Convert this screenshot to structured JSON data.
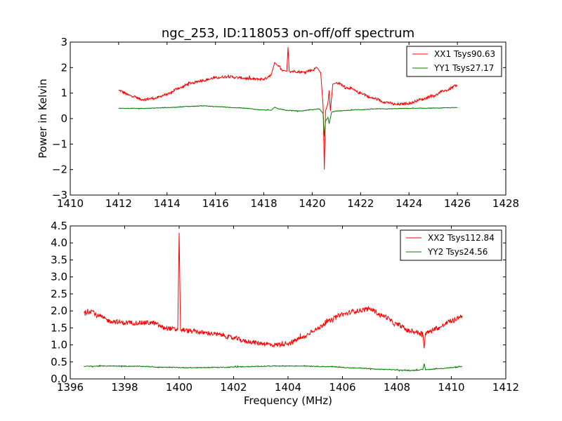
{
  "chart_data": [
    {
      "type": "line",
      "title": "ngc_253, ID:118053 on-off/off spectrum",
      "xlabel": "",
      "ylabel": "Power in Kelvin",
      "xlim": [
        1410,
        1428
      ],
      "ylim": [
        -3,
        3
      ],
      "xticks": [
        "1410",
        "1412",
        "1414",
        "1416",
        "1418",
        "1420",
        "1422",
        "1424",
        "1426",
        "1428"
      ],
      "yticks": [
        "−3",
        "−2",
        "−1",
        "0",
        "1",
        "2",
        "3"
      ],
      "legend_position": "top-right",
      "series": [
        {
          "name": "XX1 Tsys90.63",
          "color": "#ff0000",
          "x": [
            1412.0,
            1412.5,
            1413.0,
            1413.5,
            1414.0,
            1414.5,
            1415.0,
            1415.5,
            1416.0,
            1416.5,
            1417.0,
            1417.5,
            1418.0,
            1418.3,
            1418.45,
            1418.6,
            1418.8,
            1418.95,
            1419.0,
            1419.05,
            1419.3,
            1419.6,
            1420.0,
            1420.2,
            1420.35,
            1420.45,
            1420.5,
            1420.55,
            1420.65,
            1420.7,
            1420.75,
            1420.85,
            1421.0,
            1421.5,
            1422.0,
            1422.5,
            1423.0,
            1423.5,
            1424.0,
            1424.5,
            1425.0,
            1425.5,
            1426.0
          ],
          "y": [
            1.1,
            0.9,
            0.75,
            0.8,
            0.95,
            1.2,
            1.4,
            1.5,
            1.6,
            1.65,
            1.6,
            1.55,
            1.55,
            1.7,
            2.2,
            2.05,
            1.9,
            1.85,
            2.8,
            1.85,
            1.85,
            1.82,
            1.9,
            2.0,
            1.8,
            0.5,
            -2.0,
            0.3,
            0.6,
            1.1,
            0.3,
            1.35,
            1.4,
            1.2,
            1.0,
            0.8,
            0.65,
            0.55,
            0.6,
            0.75,
            0.9,
            1.1,
            1.3
          ]
        },
        {
          "name": "YY1 Tsys27.17",
          "color": "#008000",
          "x": [
            1412.0,
            1413.0,
            1414.0,
            1415.0,
            1415.5,
            1416.0,
            1417.0,
            1418.0,
            1418.3,
            1418.45,
            1418.6,
            1419.0,
            1419.5,
            1420.0,
            1420.3,
            1420.45,
            1420.5,
            1420.55,
            1420.65,
            1420.7,
            1420.8,
            1421.0,
            1422.0,
            1422.7,
            1423.0,
            1424.0,
            1425.0,
            1426.0
          ],
          "y": [
            0.4,
            0.4,
            0.43,
            0.48,
            0.5,
            0.47,
            0.42,
            0.34,
            0.32,
            0.45,
            0.38,
            0.32,
            0.3,
            0.35,
            0.38,
            0.2,
            -0.7,
            -0.1,
            0.05,
            -0.2,
            0.25,
            0.3,
            0.35,
            0.38,
            0.38,
            0.4,
            0.41,
            0.43
          ]
        }
      ]
    },
    {
      "type": "line",
      "title": "",
      "xlabel": "Frequency (MHz)",
      "ylabel": "",
      "xlim": [
        1396,
        1412
      ],
      "ylim": [
        0.0,
        4.5
      ],
      "xticks": [
        "1396",
        "1398",
        "1400",
        "1402",
        "1404",
        "1406",
        "1408",
        "1410",
        "1412"
      ],
      "yticks": [
        "0.0",
        "0.5",
        "1.0",
        "1.5",
        "2.0",
        "2.5",
        "3.0",
        "3.5",
        "4.0",
        "4.5"
      ],
      "legend_position": "top-right",
      "series": [
        {
          "name": "XX2 Tsys112.84",
          "color": "#ff0000",
          "x": [
            1396.5,
            1396.8,
            1397.0,
            1397.5,
            1398.0,
            1398.5,
            1399.0,
            1399.5,
            1399.95,
            1400.0,
            1400.05,
            1400.5,
            1401.0,
            1401.5,
            1402.0,
            1402.5,
            1403.0,
            1403.5,
            1404.0,
            1404.5,
            1405.0,
            1405.5,
            1406.0,
            1406.5,
            1407.0,
            1407.5,
            1408.0,
            1408.5,
            1408.95,
            1409.0,
            1409.05,
            1409.5,
            1410.0,
            1410.4
          ],
          "y": [
            1.95,
            2.0,
            1.85,
            1.7,
            1.65,
            1.65,
            1.65,
            1.5,
            1.45,
            4.3,
            1.45,
            1.4,
            1.35,
            1.3,
            1.2,
            1.1,
            1.05,
            1.0,
            1.05,
            1.2,
            1.45,
            1.7,
            1.9,
            2.0,
            2.05,
            1.85,
            1.6,
            1.4,
            1.35,
            0.9,
            1.35,
            1.5,
            1.7,
            1.85
          ]
        },
        {
          "name": "YY2 Tsys24.56",
          "color": "#008000",
          "x": [
            1396.5,
            1397.5,
            1398.5,
            1399.5,
            1400.5,
            1401.5,
            1402.5,
            1403.5,
            1404.5,
            1405.5,
            1406.5,
            1407.5,
            1408.5,
            1408.95,
            1409.0,
            1409.05,
            1409.5,
            1410.0,
            1410.4
          ],
          "y": [
            0.37,
            0.38,
            0.37,
            0.34,
            0.33,
            0.34,
            0.36,
            0.38,
            0.38,
            0.36,
            0.32,
            0.28,
            0.25,
            0.27,
            0.45,
            0.27,
            0.3,
            0.33,
            0.36
          ]
        }
      ]
    }
  ]
}
